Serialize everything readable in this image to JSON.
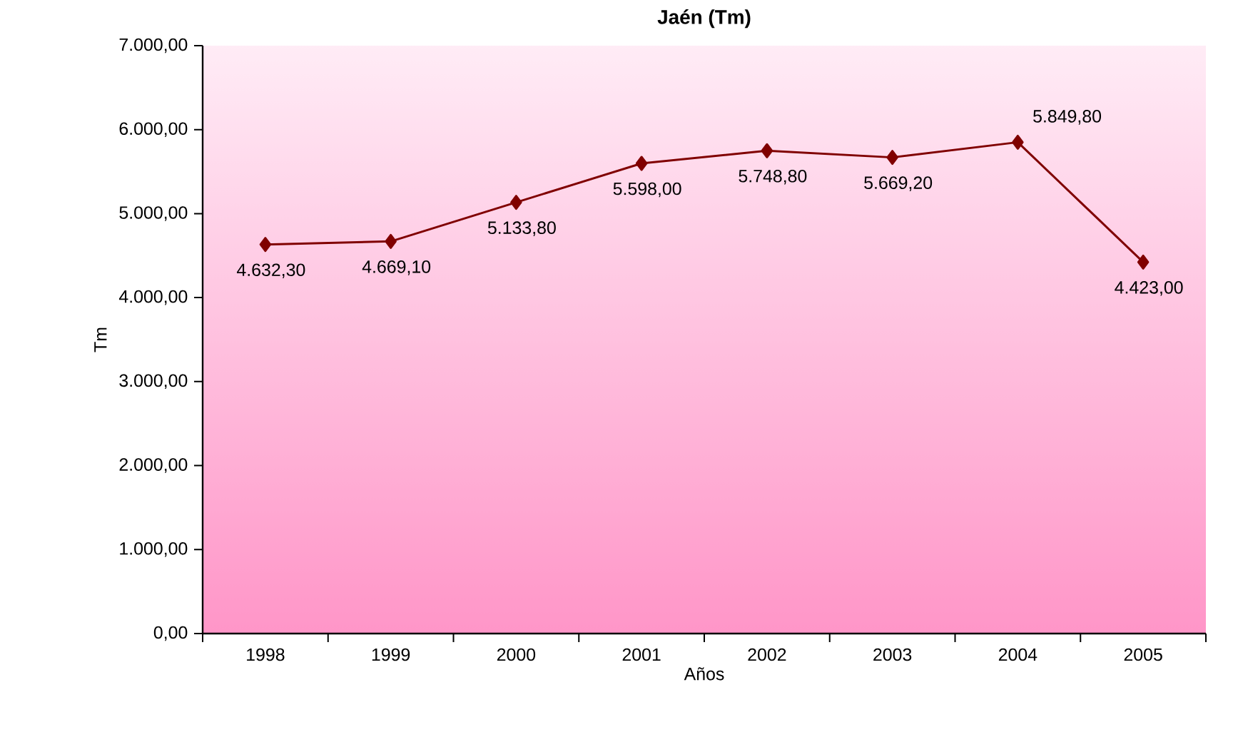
{
  "chart_data": {
    "type": "line",
    "title": "Jaén (Tm)",
    "xlabel": "Años",
    "ylabel": "Tm",
    "categories": [
      "1998",
      "1999",
      "2000",
      "2001",
      "2002",
      "2003",
      "2004",
      "2005"
    ],
    "series": [
      {
        "color": "#800000",
        "values": [
          4632.3,
          4669.1,
          5133.8,
          5598.0,
          5748.8,
          5669.2,
          5849.8,
          4423.0
        ],
        "value_labels": [
          "4.632,30",
          "4.669,10",
          "5.133,80",
          "5.598,00",
          "5.748,80",
          "5.669,20",
          "5.849,80",
          "4.423,00"
        ]
      }
    ],
    "ylim": [
      0,
      7000
    ],
    "yticks": [
      {
        "value": 0,
        "label": "0,00"
      },
      {
        "value": 1000,
        "label": "1.000,00"
      },
      {
        "value": 2000,
        "label": "2.000,00"
      },
      {
        "value": 3000,
        "label": "3.000,00"
      },
      {
        "value": 4000,
        "label": "4.000,00"
      },
      {
        "value": 5000,
        "label": "5.000,00"
      },
      {
        "value": 6000,
        "label": "6.000,00"
      },
      {
        "value": 7000,
        "label": "7.000,00"
      }
    ],
    "marker": "diamond",
    "line_style": "solid"
  }
}
